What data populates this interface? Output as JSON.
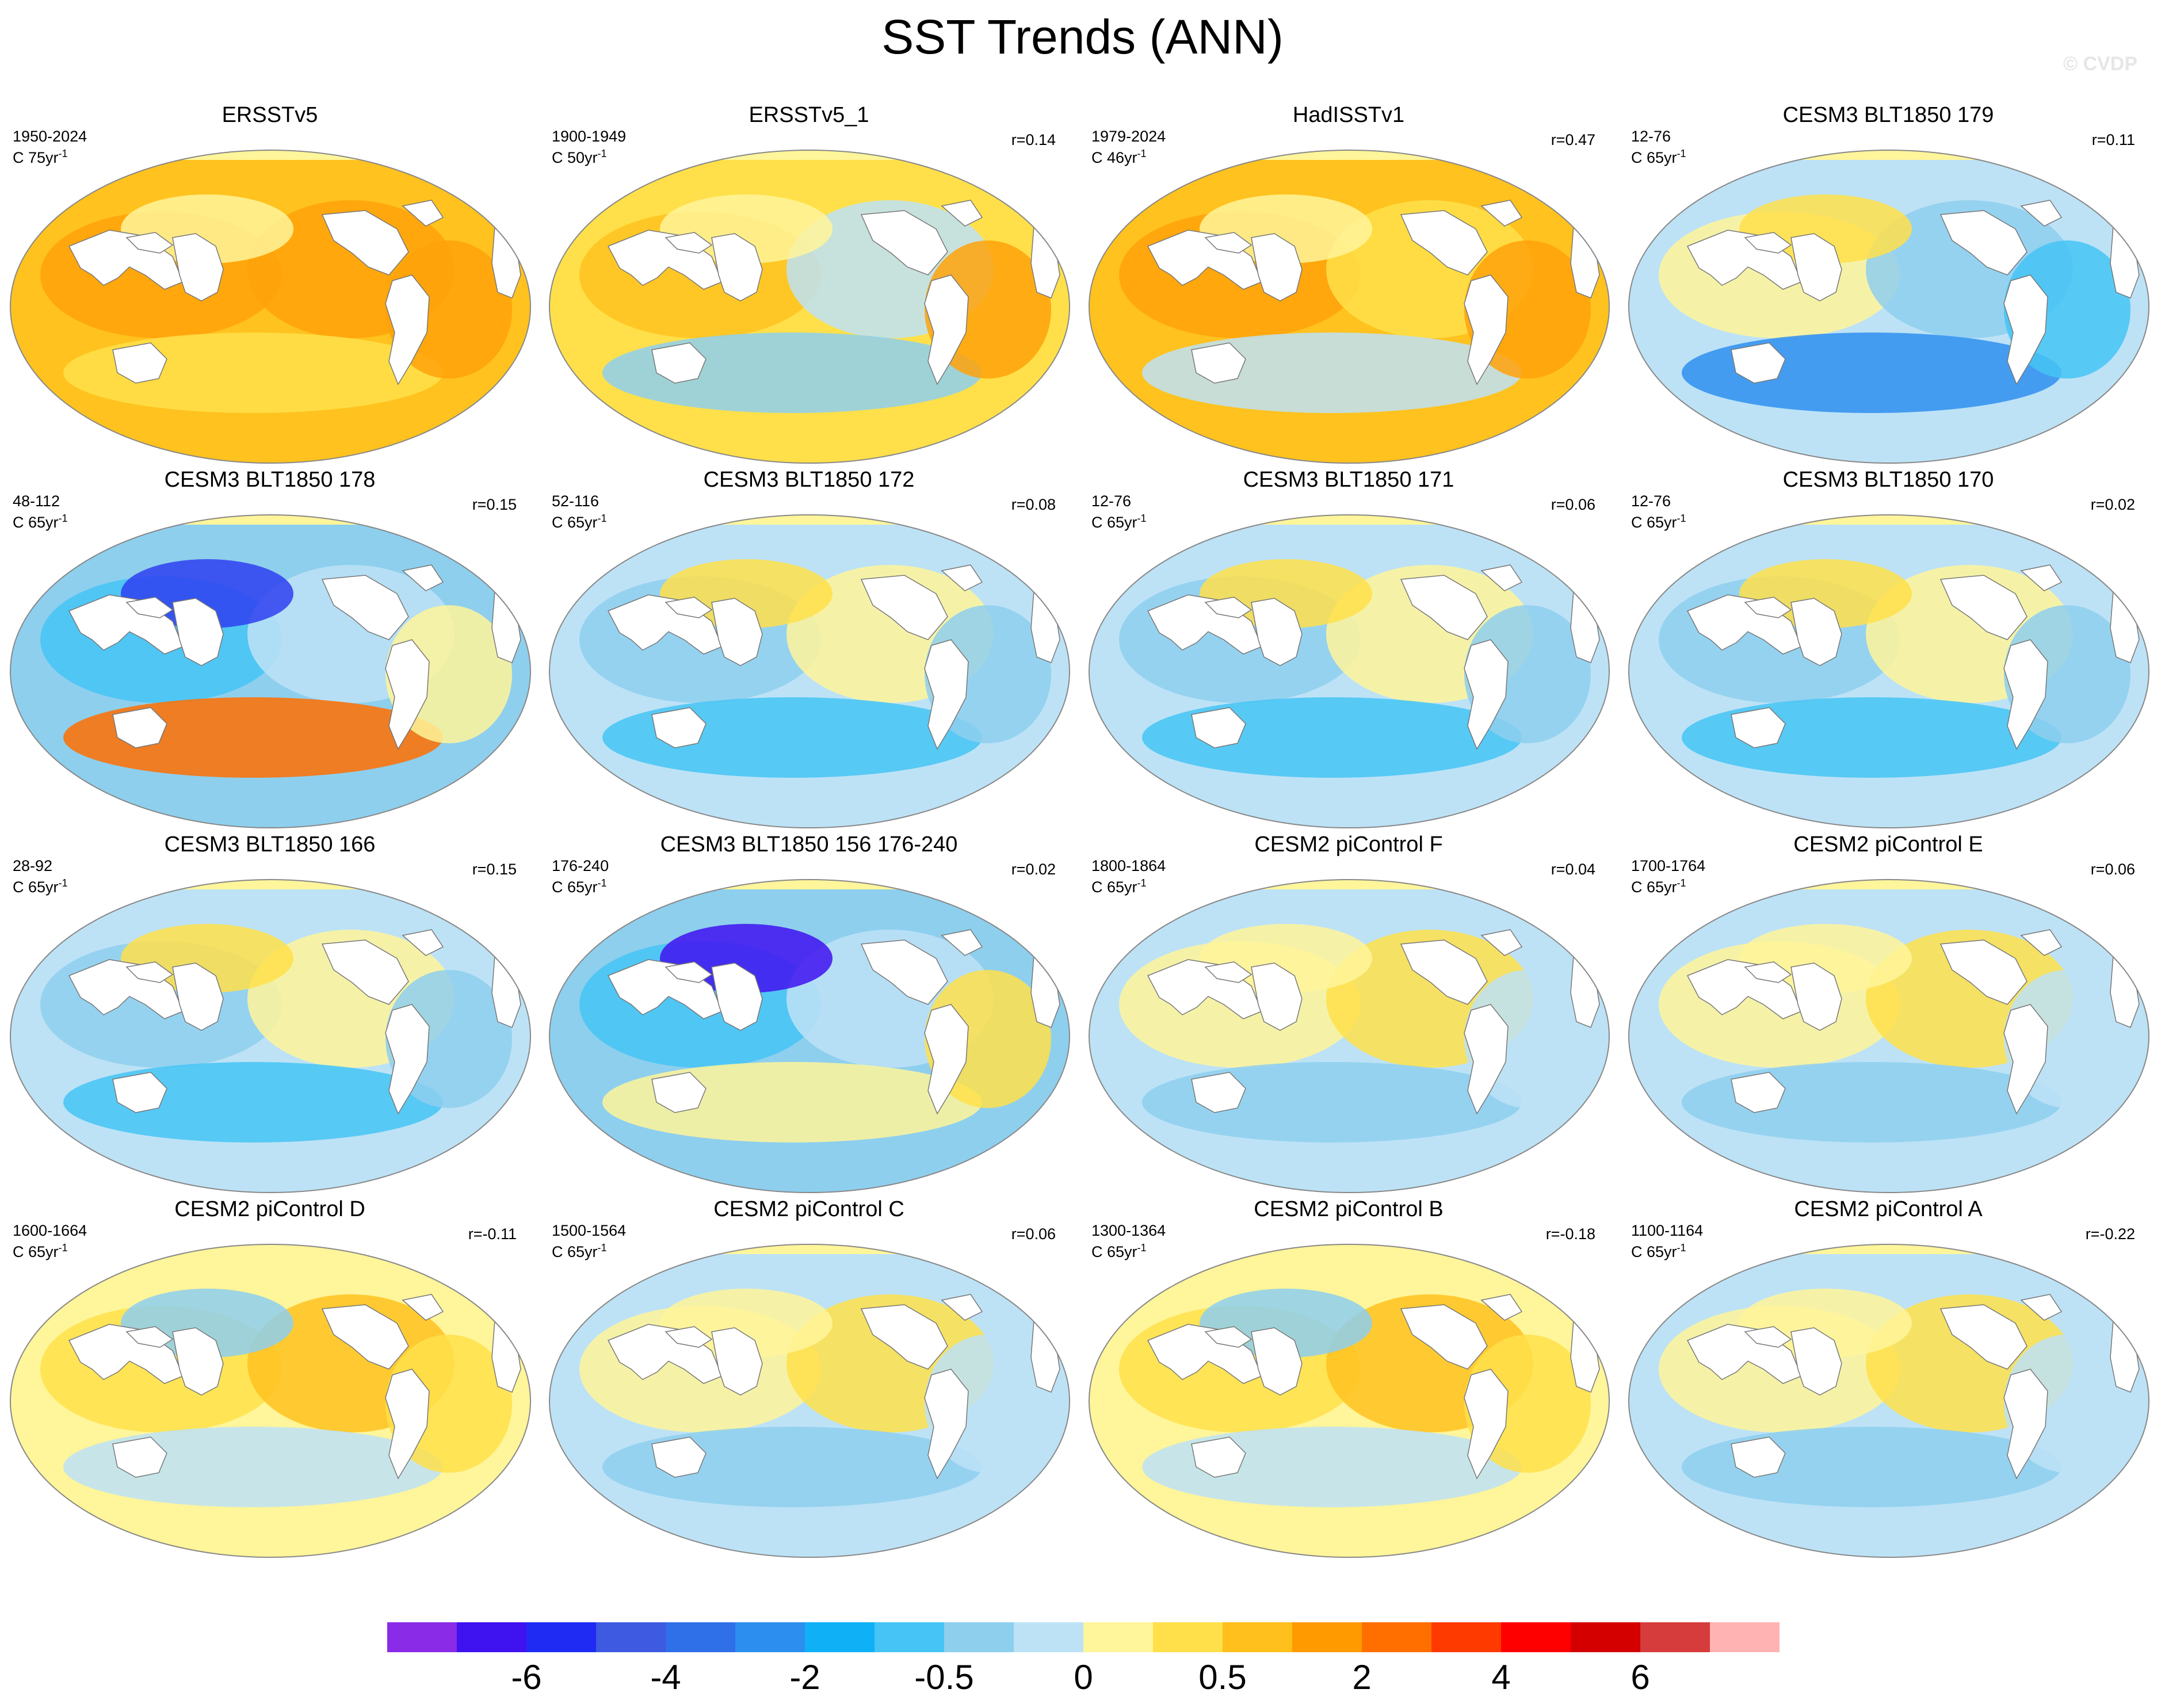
{
  "title": "SST Trends (ANN)",
  "watermark": "© CVDP",
  "panels": [
    {
      "title": "ERSSTv5",
      "period": "1950-2024",
      "units": "C 75yr",
      "r": "",
      "scheme": "obs_warm"
    },
    {
      "title": "ERSSTv5_1",
      "period": "1900-1949",
      "units": "C 50yr",
      "r": "r=0.14",
      "scheme": "obs_mixed"
    },
    {
      "title": "HadISSTv1",
      "period": "1979-2024",
      "units": "C 46yr",
      "r": "r=0.47",
      "scheme": "obs_warm2"
    },
    {
      "title": "CESM3 BLT1850 179",
      "period": "12-76",
      "units": "C 65yr",
      "r": "r=0.11",
      "scheme": "model_179"
    },
    {
      "title": "CESM3 BLT1850 178",
      "period": "48-112",
      "units": "C 65yr",
      "r": "r=0.15",
      "scheme": "model_178"
    },
    {
      "title": "CESM3 BLT1850 172",
      "period": "52-116",
      "units": "C 65yr",
      "r": "r=0.08",
      "scheme": "model_cool"
    },
    {
      "title": "CESM3 BLT1850 171",
      "period": "12-76",
      "units": "C 65yr",
      "r": "r=0.06",
      "scheme": "model_cool"
    },
    {
      "title": "CESM3 BLT1850 170",
      "period": "12-76",
      "units": "C 65yr",
      "r": "r=0.02",
      "scheme": "model_cool"
    },
    {
      "title": "CESM3 BLT1850 166",
      "period": "28-92",
      "units": "C 65yr",
      "r": "r=0.15",
      "scheme": "model_cool"
    },
    {
      "title": "CESM3 BLT1850 156 176-240",
      "period": "176-240",
      "units": "C 65yr",
      "r": "r=0.02",
      "scheme": "model_156"
    },
    {
      "title": "CESM2 piControl F",
      "period": "1800-1864",
      "units": "C 65yr",
      "r": "r=0.04",
      "scheme": "pi_neutral"
    },
    {
      "title": "CESM2 piControl E",
      "period": "1700-1764",
      "units": "C 65yr",
      "r": "r=0.06",
      "scheme": "pi_neutral"
    },
    {
      "title": "CESM2 piControl D",
      "period": "1600-1664",
      "units": "C 65yr",
      "r": "r=-0.11",
      "scheme": "pi_warm"
    },
    {
      "title": "CESM2 piControl C",
      "period": "1500-1564",
      "units": "C 65yr",
      "r": "r=0.06",
      "scheme": "pi_neutral"
    },
    {
      "title": "CESM2 piControl B",
      "period": "1300-1364",
      "units": "C 65yr",
      "r": "r=-0.18",
      "scheme": "pi_warm"
    },
    {
      "title": "CESM2 piControl A",
      "period": "1100-1164",
      "units": "C 65yr",
      "r": "r=-0.22",
      "scheme": "pi_neutral"
    }
  ],
  "units_exponent": "-1",
  "colorbar": {
    "colors": [
      "#8a2be8",
      "#3f12f0",
      "#1f2bf2",
      "#3d5ae0",
      "#2f6fe8",
      "#2c8ff0",
      "#0fb0f5",
      "#45c4f5",
      "#8ecfee",
      "#bde2f6",
      "#fff59a",
      "#ffe04a",
      "#ffbf1c",
      "#ff9a00",
      "#ff6f00",
      "#ff3a00",
      "#ff0000",
      "#d40000",
      "#d63c3c",
      "#ffb3b3"
    ],
    "labels": [
      "-6",
      "-4",
      "-2",
      "-0.5",
      "0",
      "0.5",
      "2",
      "4",
      "6"
    ],
    "label_boundaries": [
      2,
      4,
      6,
      8,
      10,
      12,
      14,
      16,
      18
    ]
  },
  "scheme_colors": {
    "obs_warm": {
      "base": "#ffc21f",
      "blobs": [
        "#ffa20a",
        "#ffa20a",
        "#ffe04a",
        "#fff59a",
        "#ffa20a"
      ]
    },
    "obs_warm2": {
      "base": "#ffc21f",
      "blobs": [
        "#ffa20a",
        "#ffe04a",
        "#bde2f6",
        "#fff59a",
        "#ffa20a"
      ]
    },
    "obs_mixed": {
      "base": "#ffe04a",
      "blobs": [
        "#ffc21f",
        "#bde2f6",
        "#8ecfee",
        "#fff59a",
        "#ffa20a"
      ]
    },
    "model_179": {
      "base": "#bde2f6",
      "blobs": [
        "#fff59a",
        "#8ecfee",
        "#2f8ff0",
        "#ffe04a",
        "#45c4f5"
      ]
    },
    "model_178": {
      "base": "#8ecfee",
      "blobs": [
        "#45c4f5",
        "#bde2f6",
        "#ff6f00",
        "#2f3ff0",
        "#fff59a"
      ]
    },
    "model_cool": {
      "base": "#bde2f6",
      "blobs": [
        "#8ecfee",
        "#fff59a",
        "#45c4f5",
        "#ffe04a",
        "#8ecfee"
      ]
    },
    "model_156": {
      "base": "#8ecfee",
      "blobs": [
        "#45c4f5",
        "#bde2f6",
        "#fff59a",
        "#3f12f0",
        "#ffe04a"
      ]
    },
    "pi_neutral": {
      "base": "#bde2f6",
      "blobs": [
        "#fff59a",
        "#ffe04a",
        "#8ecfee",
        "#fff59a",
        "#bde2f6"
      ]
    },
    "pi_warm": {
      "base": "#fff59a",
      "blobs": [
        "#ffe04a",
        "#ffc21f",
        "#bde2f6",
        "#8ecfee",
        "#ffe04a"
      ]
    }
  }
}
